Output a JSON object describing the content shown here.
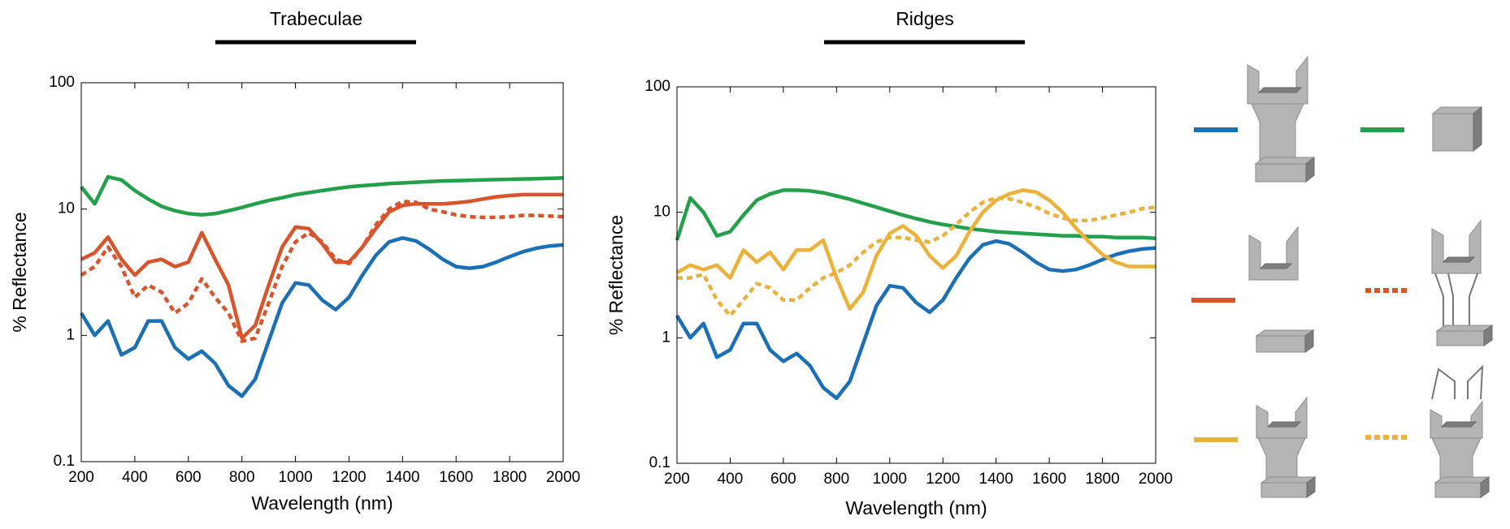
{
  "chart_data": [
    {
      "type": "line",
      "title": "Trabeculae",
      "x_label": "Wavelength (nm)",
      "y_label": "% Reflectance",
      "log_y": true,
      "xlim": [
        200,
        2000
      ],
      "ylim": [
        0.1,
        100
      ],
      "xticks": [
        200,
        400,
        600,
        800,
        1000,
        1200,
        1400,
        1600,
        1800,
        2000
      ],
      "yticks": [
        0.1,
        1,
        10,
        100
      ],
      "x": [
        200,
        250,
        300,
        350,
        400,
        450,
        500,
        550,
        600,
        650,
        700,
        750,
        800,
        850,
        900,
        950,
        1000,
        1050,
        1100,
        1150,
        1200,
        1250,
        1300,
        1350,
        1400,
        1450,
        1500,
        1550,
        1600,
        1650,
        1700,
        1750,
        1800,
        1850,
        1900,
        1950,
        2000
      ],
      "series": [
        {
          "color": "#23a04a",
          "dashed": false,
          "values": [
            15,
            11,
            18,
            17,
            14,
            12,
            10.5,
            9.7,
            9.2,
            9.0,
            9.2,
            9.7,
            10.3,
            11,
            11.7,
            12.3,
            13,
            13.5,
            14,
            14.5,
            15,
            15.3,
            15.6,
            15.9,
            16.1,
            16.3,
            16.5,
            16.7,
            16.8,
            16.9,
            17,
            17.1,
            17.2,
            17.3,
            17.4,
            17.5,
            17.6
          ]
        },
        {
          "color": "#1a6fb5",
          "dashed": false,
          "values": [
            1.5,
            1.0,
            1.3,
            0.7,
            0.8,
            1.3,
            1.3,
            0.8,
            0.65,
            0.75,
            0.6,
            0.4,
            0.33,
            0.45,
            0.9,
            1.8,
            2.6,
            2.5,
            1.9,
            1.6,
            2.0,
            3.0,
            4.3,
            5.5,
            5.9,
            5.6,
            4.8,
            4.0,
            3.5,
            3.4,
            3.5,
            3.8,
            4.2,
            4.6,
            4.9,
            5.1,
            5.2
          ]
        },
        {
          "color": "#d9532b",
          "dashed": false,
          "values": [
            4,
            4.5,
            6,
            4,
            3,
            3.8,
            4,
            3.5,
            3.8,
            6.5,
            4,
            2.5,
            0.95,
            1.2,
            2.5,
            5,
            7.2,
            7,
            5.3,
            3.8,
            3.8,
            5,
            7,
            9.5,
            10.7,
            11,
            11,
            11,
            11.2,
            11.5,
            12,
            12.5,
            12.8,
            13,
            13,
            13,
            13
          ]
        },
        {
          "color": "#d9532b",
          "dashed": true,
          "values": [
            3,
            3.5,
            5,
            3.5,
            2,
            2.5,
            2.2,
            1.5,
            1.8,
            2.8,
            2,
            1.5,
            0.9,
            0.95,
            1.8,
            3.5,
            5.5,
            6.5,
            5.5,
            4,
            3.7,
            5,
            7.5,
            10,
            11.5,
            11.3,
            10,
            9.5,
            9,
            8.7,
            8.6,
            8.6,
            8.7,
            8.9,
            8.9,
            8.8,
            8.7
          ]
        }
      ]
    },
    {
      "type": "line",
      "title": "Ridges",
      "x_label": "Wavelength (nm)",
      "y_label": "% Reflectance",
      "log_y": true,
      "xlim": [
        200,
        2000
      ],
      "ylim": [
        0.1,
        100
      ],
      "xticks": [
        200,
        400,
        600,
        800,
        1000,
        1200,
        1400,
        1600,
        1800,
        2000
      ],
      "yticks": [
        0.1,
        1,
        10,
        100
      ],
      "x": [
        200,
        250,
        300,
        350,
        400,
        450,
        500,
        550,
        600,
        650,
        700,
        750,
        800,
        850,
        900,
        950,
        1000,
        1050,
        1100,
        1150,
        1200,
        1250,
        1300,
        1350,
        1400,
        1450,
        1500,
        1550,
        1600,
        1650,
        1700,
        1750,
        1800,
        1850,
        1900,
        1950,
        2000
      ],
      "series": [
        {
          "color": "#23a04a",
          "dashed": false,
          "values": [
            6,
            13,
            10,
            6.5,
            7,
            9.5,
            12.5,
            14,
            15,
            15,
            14.8,
            14.3,
            13.5,
            12.7,
            11.8,
            11,
            10.2,
            9.5,
            8.9,
            8.4,
            8,
            7.7,
            7.4,
            7.2,
            7.0,
            6.9,
            6.8,
            6.7,
            6.6,
            6.5,
            6.5,
            6.4,
            6.4,
            6.3,
            6.3,
            6.3,
            6.2
          ]
        },
        {
          "color": "#1a6fb5",
          "dashed": false,
          "values": [
            1.5,
            1.0,
            1.3,
            0.7,
            0.8,
            1.3,
            1.3,
            0.8,
            0.65,
            0.75,
            0.6,
            0.4,
            0.33,
            0.45,
            0.9,
            1.8,
            2.6,
            2.5,
            1.9,
            1.6,
            2.0,
            3.0,
            4.3,
            5.5,
            5.9,
            5.6,
            4.8,
            4.0,
            3.5,
            3.4,
            3.5,
            3.8,
            4.2,
            4.6,
            4.9,
            5.1,
            5.2
          ]
        },
        {
          "color": "#ebb13a",
          "dashed": false,
          "values": [
            3.3,
            3.8,
            3.5,
            3.8,
            3,
            5,
            4,
            4.8,
            3.5,
            5,
            5,
            6,
            3,
            1.7,
            2.3,
            4.5,
            6.8,
            7.8,
            6.5,
            4.5,
            3.6,
            4.5,
            7,
            10,
            12.5,
            14,
            15,
            14.5,
            12.5,
            10,
            7.5,
            5.8,
            4.6,
            4,
            3.7,
            3.7,
            3.7
          ]
        },
        {
          "color": "#ebb13a",
          "dashed": true,
          "values": [
            3,
            3,
            3.2,
            2,
            1.5,
            2,
            2.7,
            2.5,
            2,
            2,
            2.5,
            3,
            3.3,
            3.8,
            4.8,
            5.8,
            6.3,
            6.3,
            6.0,
            5.8,
            6.5,
            8,
            10,
            12,
            13,
            12.8,
            12,
            11,
            9.8,
            9,
            8.6,
            8.6,
            9,
            9.5,
            10,
            10.7,
            11
          ]
        }
      ]
    }
  ]
}
